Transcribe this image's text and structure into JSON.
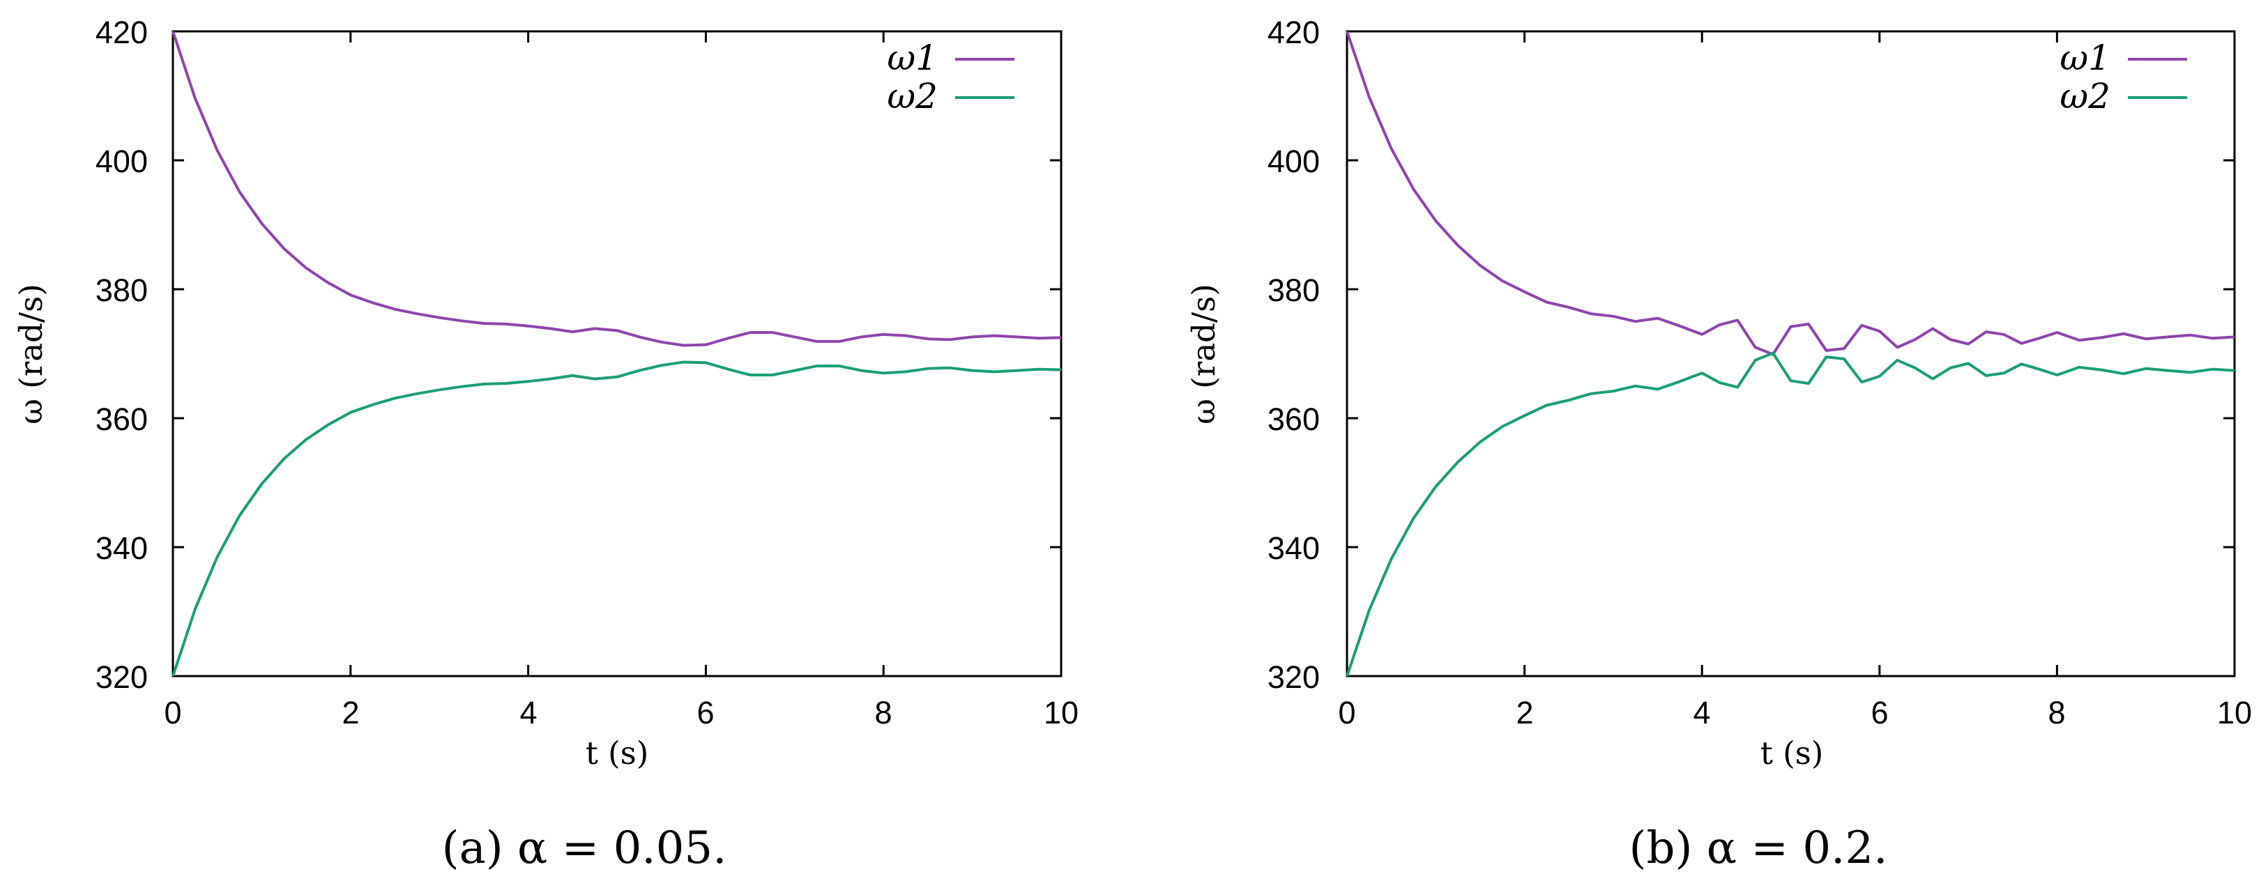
{
  "colors": {
    "omega1": "#8e44ad",
    "omega2": "#1a9e77"
  },
  "chart_data": [
    {
      "type": "line",
      "panel_label": "a",
      "caption": "(a) α = 0.05.",
      "xlabel": "t (s)",
      "ylabel": "ω (rad/s)",
      "xlim": [
        0,
        10
      ],
      "ylim": [
        320,
        420
      ],
      "xticks": [
        0,
        2,
        4,
        6,
        8,
        10
      ],
      "yticks": [
        320,
        340,
        360,
        380,
        400,
        420
      ],
      "grid": false,
      "legend_position": "top-right",
      "legend_labels": [
        "ω1",
        "ω2"
      ],
      "x": [
        0,
        0.25,
        0.5,
        0.75,
        1,
        1.25,
        1.5,
        1.75,
        2,
        2.25,
        2.5,
        2.75,
        3,
        3.25,
        3.5,
        3.75,
        4,
        4.25,
        4.5,
        4.75,
        5,
        5.25,
        5.5,
        5.75,
        6,
        6.25,
        6.5,
        6.75,
        7,
        7.25,
        7.5,
        7.75,
        8,
        8.25,
        8.5,
        8.75,
        9,
        9.25,
        9.5,
        9.75,
        10
      ],
      "series": [
        {
          "name": "ω1",
          "values": [
            420,
            409.6,
            401.5,
            395.1,
            390.2,
            386.3,
            383.3,
            381.0,
            379.1,
            377.9,
            376.9,
            376.2,
            375.6,
            375.1,
            374.7,
            374.6,
            374.3,
            373.9,
            373.4,
            373.9,
            373.6,
            372.6,
            371.8,
            371.3,
            371.4,
            372.4,
            373.3,
            373.3,
            372.6,
            371.9,
            371.9,
            372.6,
            373.0,
            372.8,
            372.3,
            372.2,
            372.6,
            372.8,
            372.6,
            372.4,
            372.5
          ]
        },
        {
          "name": "ω2",
          "values": [
            320,
            330.4,
            338.5,
            344.9,
            349.8,
            353.7,
            356.7,
            359.0,
            360.9,
            362.1,
            363.1,
            363.8,
            364.4,
            364.9,
            365.3,
            365.4,
            365.7,
            366.1,
            366.6,
            366.1,
            366.4,
            367.4,
            368.2,
            368.7,
            368.6,
            367.6,
            366.7,
            366.7,
            367.4,
            368.1,
            368.1,
            367.4,
            367.0,
            367.2,
            367.7,
            367.8,
            367.4,
            367.2,
            367.4,
            367.6,
            367.5
          ]
        }
      ]
    },
    {
      "type": "line",
      "panel_label": "b",
      "caption": "(b) α = 0.2.",
      "xlabel": "t (s)",
      "ylabel": "ω (rad/s)",
      "xlim": [
        0,
        10
      ],
      "ylim": [
        320,
        420
      ],
      "xticks": [
        0,
        2,
        4,
        6,
        8,
        10
      ],
      "yticks": [
        320,
        340,
        360,
        380,
        400,
        420
      ],
      "grid": false,
      "legend_position": "top-right",
      "legend_labels": [
        "ω1",
        "ω2"
      ],
      "x": [
        0,
        0.25,
        0.5,
        0.75,
        1,
        1.25,
        1.5,
        1.75,
        2,
        2.25,
        2.5,
        2.75,
        3,
        3.25,
        3.5,
        3.75,
        4,
        4.2,
        4.4,
        4.6,
        4.8,
        5.0,
        5.2,
        5.4,
        5.6,
        5.8,
        6.0,
        6.2,
        6.4,
        6.6,
        6.8,
        7.0,
        7.2,
        7.4,
        7.6,
        7.8,
        8.0,
        8.25,
        8.5,
        8.75,
        9,
        9.25,
        9.5,
        9.75,
        10
      ],
      "series": [
        {
          "name": "ω1",
          "values": [
            420,
            409.8,
            401.8,
            395.5,
            390.6,
            386.8,
            383.7,
            381.3,
            379.6,
            378.0,
            377.2,
            376.2,
            375.8,
            375.0,
            375.5,
            374.3,
            373.0,
            374.5,
            375.2,
            371.0,
            369.9,
            374.2,
            374.6,
            370.5,
            370.8,
            374.4,
            373.5,
            371.0,
            372.2,
            373.9,
            372.2,
            371.5,
            373.4,
            373.0,
            371.6,
            372.4,
            373.3,
            372.1,
            372.5,
            373.1,
            372.3,
            372.6,
            372.9,
            372.4,
            372.6
          ]
        },
        {
          "name": "ω2",
          "values": [
            320,
            330.2,
            338.2,
            344.5,
            349.4,
            353.2,
            356.3,
            358.7,
            360.4,
            362.0,
            362.8,
            363.8,
            364.2,
            365.0,
            364.5,
            365.7,
            367.0,
            365.5,
            364.8,
            369.0,
            370.1,
            365.8,
            365.4,
            369.5,
            369.2,
            365.6,
            366.5,
            369.0,
            367.8,
            366.1,
            367.8,
            368.5,
            366.6,
            367.0,
            368.4,
            367.6,
            366.7,
            367.9,
            367.5,
            366.9,
            367.7,
            367.4,
            367.1,
            367.6,
            367.4
          ]
        }
      ]
    }
  ]
}
